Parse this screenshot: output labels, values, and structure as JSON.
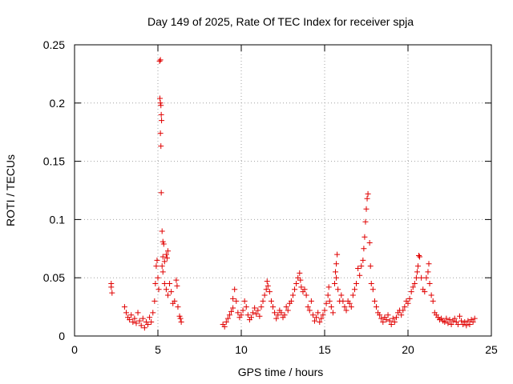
{
  "chart_data": {
    "type": "scatter",
    "title": "Day 149 of 2025, Rate Of TEC Index for receiver spja",
    "xlabel": "GPS time / hours",
    "ylabel": "ROTI / TECUs",
    "xlim": [
      0,
      25
    ],
    "ylim": [
      0,
      0.25
    ],
    "xticks": [
      0,
      5,
      10,
      15,
      20,
      25
    ],
    "xtick_labels": [
      "0",
      "5",
      "10",
      "15",
      "20",
      "25"
    ],
    "yticks": [
      0,
      0.05,
      0.1,
      0.15,
      0.2,
      0.25
    ],
    "ytick_labels": [
      "0",
      "0.05",
      "0.1",
      "0.15",
      "0.2",
      "0.25"
    ],
    "grid": true,
    "marker": "+",
    "color": "#e00000",
    "series": [
      {
        "name": "ROTI",
        "points": [
          [
            2.2,
            0.045
          ],
          [
            2.2,
            0.042
          ],
          [
            2.25,
            0.037
          ],
          [
            3.0,
            0.025
          ],
          [
            3.1,
            0.02
          ],
          [
            3.2,
            0.016
          ],
          [
            3.3,
            0.014
          ],
          [
            3.4,
            0.018
          ],
          [
            3.5,
            0.012
          ],
          [
            3.6,
            0.015
          ],
          [
            3.7,
            0.011
          ],
          [
            3.8,
            0.02
          ],
          [
            3.9,
            0.013
          ],
          [
            4.0,
            0.009
          ],
          [
            4.1,
            0.015
          ],
          [
            4.2,
            0.007
          ],
          [
            4.3,
            0.012
          ],
          [
            4.4,
            0.01
          ],
          [
            4.5,
            0.016
          ],
          [
            4.6,
            0.012
          ],
          [
            4.7,
            0.02
          ],
          [
            4.8,
            0.03
          ],
          [
            4.85,
            0.045
          ],
          [
            4.9,
            0.06
          ],
          [
            4.95,
            0.065
          ],
          [
            5.0,
            0.05
          ],
          [
            5.05,
            0.04
          ],
          [
            5.1,
            0.236
          ],
          [
            5.15,
            0.237
          ],
          [
            5.12,
            0.204
          ],
          [
            5.15,
            0.2
          ],
          [
            5.18,
            0.198
          ],
          [
            5.2,
            0.19
          ],
          [
            5.22,
            0.185
          ],
          [
            5.15,
            0.174
          ],
          [
            5.18,
            0.163
          ],
          [
            5.2,
            0.123
          ],
          [
            5.25,
            0.09
          ],
          [
            5.3,
            0.081
          ],
          [
            5.35,
            0.079
          ],
          [
            5.3,
            0.068
          ],
          [
            5.4,
            0.064
          ],
          [
            5.25,
            0.06
          ],
          [
            5.3,
            0.055
          ],
          [
            5.5,
            0.07
          ],
          [
            5.6,
            0.073
          ],
          [
            5.55,
            0.067
          ],
          [
            5.4,
            0.045
          ],
          [
            5.5,
            0.04
          ],
          [
            5.6,
            0.035
          ],
          [
            5.7,
            0.045
          ],
          [
            5.8,
            0.038
          ],
          [
            5.9,
            0.028
          ],
          [
            6.0,
            0.03
          ],
          [
            6.1,
            0.048
          ],
          [
            6.15,
            0.043
          ],
          [
            6.2,
            0.025
          ],
          [
            6.3,
            0.017
          ],
          [
            6.35,
            0.015
          ],
          [
            6.4,
            0.012
          ],
          [
            8.9,
            0.01
          ],
          [
            9.0,
            0.008
          ],
          [
            9.1,
            0.012
          ],
          [
            9.2,
            0.015
          ],
          [
            9.3,
            0.018
          ],
          [
            9.4,
            0.021
          ],
          [
            9.5,
            0.024
          ],
          [
            9.5,
            0.032
          ],
          [
            9.6,
            0.04
          ],
          [
            9.7,
            0.03
          ],
          [
            9.8,
            0.02
          ],
          [
            9.9,
            0.016
          ],
          [
            10.0,
            0.018
          ],
          [
            10.1,
            0.022
          ],
          [
            10.2,
            0.03
          ],
          [
            10.3,
            0.025
          ],
          [
            10.4,
            0.018
          ],
          [
            10.5,
            0.014
          ],
          [
            10.6,
            0.016
          ],
          [
            10.7,
            0.02
          ],
          [
            10.8,
            0.024
          ],
          [
            10.9,
            0.019
          ],
          [
            11.0,
            0.022
          ],
          [
            11.1,
            0.017
          ],
          [
            11.2,
            0.025
          ],
          [
            11.3,
            0.03
          ],
          [
            11.4,
            0.035
          ],
          [
            11.5,
            0.04
          ],
          [
            11.55,
            0.047
          ],
          [
            11.6,
            0.043
          ],
          [
            11.7,
            0.038
          ],
          [
            11.8,
            0.03
          ],
          [
            11.9,
            0.025
          ],
          [
            12.0,
            0.02
          ],
          [
            12.1,
            0.015
          ],
          [
            12.2,
            0.018
          ],
          [
            12.3,
            0.022
          ],
          [
            12.4,
            0.02
          ],
          [
            12.5,
            0.016
          ],
          [
            12.6,
            0.018
          ],
          [
            12.7,
            0.025
          ],
          [
            12.8,
            0.022
          ],
          [
            12.9,
            0.028
          ],
          [
            13.0,
            0.03
          ],
          [
            13.1,
            0.035
          ],
          [
            13.2,
            0.04
          ],
          [
            13.3,
            0.045
          ],
          [
            13.4,
            0.05
          ],
          [
            13.5,
            0.054
          ],
          [
            13.55,
            0.048
          ],
          [
            13.6,
            0.042
          ],
          [
            13.7,
            0.038
          ],
          [
            13.8,
            0.04
          ],
          [
            13.9,
            0.035
          ],
          [
            14.0,
            0.025
          ],
          [
            14.1,
            0.022
          ],
          [
            14.2,
            0.03
          ],
          [
            14.3,
            0.018
          ],
          [
            14.4,
            0.013
          ],
          [
            14.5,
            0.016
          ],
          [
            14.6,
            0.02
          ],
          [
            14.7,
            0.012
          ],
          [
            14.8,
            0.015
          ],
          [
            14.9,
            0.018
          ],
          [
            15.0,
            0.022
          ],
          [
            15.1,
            0.028
          ],
          [
            15.2,
            0.035
          ],
          [
            15.25,
            0.042
          ],
          [
            15.3,
            0.03
          ],
          [
            15.4,
            0.025
          ],
          [
            15.5,
            0.02
          ],
          [
            15.6,
            0.045
          ],
          [
            15.65,
            0.055
          ],
          [
            15.7,
            0.062
          ],
          [
            15.75,
            0.07
          ],
          [
            15.7,
            0.05
          ],
          [
            15.8,
            0.04
          ],
          [
            15.9,
            0.03
          ],
          [
            16.0,
            0.035
          ],
          [
            16.1,
            0.03
          ],
          [
            16.2,
            0.025
          ],
          [
            16.3,
            0.022
          ],
          [
            16.4,
            0.03
          ],
          [
            16.5,
            0.028
          ],
          [
            16.6,
            0.025
          ],
          [
            16.7,
            0.035
          ],
          [
            16.8,
            0.04
          ],
          [
            16.9,
            0.045
          ],
          [
            17.0,
            0.058
          ],
          [
            17.1,
            0.052
          ],
          [
            17.2,
            0.06
          ],
          [
            17.3,
            0.065
          ],
          [
            17.35,
            0.075
          ],
          [
            17.4,
            0.085
          ],
          [
            17.45,
            0.098
          ],
          [
            17.5,
            0.109
          ],
          [
            17.55,
            0.118
          ],
          [
            17.6,
            0.122
          ],
          [
            17.7,
            0.08
          ],
          [
            17.75,
            0.06
          ],
          [
            17.8,
            0.045
          ],
          [
            17.9,
            0.04
          ],
          [
            18.0,
            0.03
          ],
          [
            18.1,
            0.025
          ],
          [
            18.2,
            0.02
          ],
          [
            18.3,
            0.018
          ],
          [
            18.4,
            0.015
          ],
          [
            18.5,
            0.012
          ],
          [
            18.6,
            0.016
          ],
          [
            18.7,
            0.014
          ],
          [
            18.8,
            0.018
          ],
          [
            18.9,
            0.013
          ],
          [
            19.0,
            0.01
          ],
          [
            19.1,
            0.015
          ],
          [
            19.2,
            0.012
          ],
          [
            19.3,
            0.016
          ],
          [
            19.4,
            0.02
          ],
          [
            19.5,
            0.022
          ],
          [
            19.6,
            0.018
          ],
          [
            19.7,
            0.022
          ],
          [
            19.8,
            0.025
          ],
          [
            19.9,
            0.03
          ],
          [
            20.0,
            0.028
          ],
          [
            20.1,
            0.032
          ],
          [
            20.2,
            0.038
          ],
          [
            20.3,
            0.042
          ],
          [
            20.4,
            0.045
          ],
          [
            20.5,
            0.05
          ],
          [
            20.55,
            0.055
          ],
          [
            20.6,
            0.06
          ],
          [
            20.65,
            0.069
          ],
          [
            20.7,
            0.068
          ],
          [
            20.8,
            0.05
          ],
          [
            20.9,
            0.04
          ],
          [
            21.0,
            0.038
          ],
          [
            21.1,
            0.05
          ],
          [
            21.2,
            0.055
          ],
          [
            21.25,
            0.062
          ],
          [
            21.3,
            0.045
          ],
          [
            21.4,
            0.035
          ],
          [
            21.5,
            0.03
          ],
          [
            21.6,
            0.02
          ],
          [
            21.7,
            0.018
          ],
          [
            21.8,
            0.016
          ],
          [
            21.9,
            0.014
          ],
          [
            22.0,
            0.015
          ],
          [
            22.1,
            0.013
          ],
          [
            22.2,
            0.012
          ],
          [
            22.3,
            0.015
          ],
          [
            22.4,
            0.011
          ],
          [
            22.5,
            0.014
          ],
          [
            22.6,
            0.01
          ],
          [
            22.7,
            0.013
          ],
          [
            22.8,
            0.015
          ],
          [
            22.9,
            0.012
          ],
          [
            23.0,
            0.01
          ],
          [
            23.1,
            0.017
          ],
          [
            23.2,
            0.013
          ],
          [
            23.3,
            0.01
          ],
          [
            23.4,
            0.012
          ],
          [
            23.5,
            0.009
          ],
          [
            23.6,
            0.013
          ],
          [
            23.7,
            0.01
          ],
          [
            23.8,
            0.014
          ],
          [
            23.9,
            0.012
          ],
          [
            24.0,
            0.015
          ]
        ]
      }
    ]
  }
}
